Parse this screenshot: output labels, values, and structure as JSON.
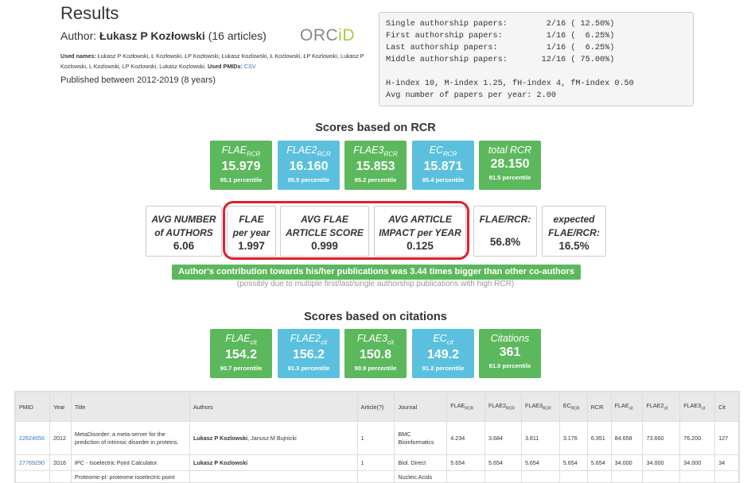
{
  "header": {
    "title": "Results",
    "author_prefix": "Author:",
    "author_name": "Łukasz P Kozłowski",
    "article_count": "(16 articles)",
    "orcid_text": "ORC",
    "orcid_id": "iD",
    "used_names_label": "Used names:",
    "used_names": "Łukasz P Kozłowski, Ł Kozłowski, ŁP Kozłowski, Łukasz Kozlowski, Ł Kozlowski, ŁP Kozlowski, Lukasz P Kozlowski, L Kozlowski, LP Kozlowski, Lukasz Kozlowski.",
    "used_pmids_label": "Used PMIDs:",
    "used_pmids_link": "CSV",
    "published": "Published between 2012-2019 (8 years)"
  },
  "stats_box": {
    "text": "Single authorship papers:        2/16 ( 12.50%)\nFirst authorship papers:         1/16 (  6.25%)\nLast authorship papers:          1/16 (  6.25%)\nMiddle authorship papers:       12/16 ( 75.00%)\n\nH-index 10, M-index 1.25, fH-index 4, fM-index 0.50\nAvg number of papers per year: 2.00"
  },
  "rcr": {
    "section_title": "Scores based on RCR",
    "tiles": [
      {
        "name": "FLAE",
        "sub": "RCR",
        "value": "15.979",
        "percentile": "95.1 percentile",
        "color": "green"
      },
      {
        "name": "FLAE2",
        "sub": "RCR",
        "value": "16.160",
        "percentile": "95.5 percentile",
        "color": "blue"
      },
      {
        "name": "FLAE3",
        "sub": "RCR",
        "value": "15.853",
        "percentile": "95.2 percentile",
        "color": "green"
      },
      {
        "name": "EC",
        "sub": "RCR",
        "value": "15.871",
        "percentile": "95.4 percentile",
        "color": "blue"
      },
      {
        "name": "total RCR",
        "sub": "",
        "value": "28.150",
        "percentile": "81.5 percentile",
        "color": "green"
      }
    ],
    "boxes": [
      {
        "line1": "AVG NUMBER",
        "line2": "of AUTHORS",
        "value": "6.06"
      },
      {
        "line1": "FLAE",
        "line2": "per year",
        "value": "1.997"
      },
      {
        "line1": "AVG FLAE",
        "line2": "ARTICLE SCORE",
        "value": "0.999"
      },
      {
        "line1": "AVG ARTICLE",
        "line2": "IMPACT per YEAR",
        "value": "0.125"
      },
      {
        "line1": "FLAE/RCR:",
        "line2": "",
        "value": "56.8%"
      },
      {
        "line1": "expected",
        "line2": "FLAE/RCR:",
        "value": "16.5%"
      }
    ],
    "contribution": "Author's contribution towards his/her publications was 3.44 times bigger than other co-authors",
    "contribution_note": "(possibly due to multiple first/last/single authorship publications with high RCR)"
  },
  "citations": {
    "section_title": "Scores based on citations",
    "tiles": [
      {
        "name": "FLAE",
        "sub": "cit",
        "value": "154.2",
        "percentile": "90.7 percentile",
        "color": "green"
      },
      {
        "name": "FLAE2",
        "sub": "cit",
        "value": "156.2",
        "percentile": "91.3 percentile",
        "color": "blue"
      },
      {
        "name": "FLAE3",
        "sub": "cit",
        "value": "150.8",
        "percentile": "90.9 percentile",
        "color": "green"
      },
      {
        "name": "EC",
        "sub": "cit",
        "value": "149.2",
        "percentile": "91.2 percentile",
        "color": "blue"
      },
      {
        "name": "Citations",
        "sub": "",
        "value": "361",
        "percentile": "81.0 percentile",
        "color": "green"
      }
    ]
  },
  "table": {
    "columns": [
      {
        "label": "PMID",
        "sub": ""
      },
      {
        "label": "Year",
        "sub": ""
      },
      {
        "label": "Title",
        "sub": ""
      },
      {
        "label": "Authors",
        "sub": ""
      },
      {
        "label": "Article(?)",
        "sub": ""
      },
      {
        "label": "Journal",
        "sub": ""
      },
      {
        "label": "FLAE",
        "sub": "RCR"
      },
      {
        "label": "FLAE2",
        "sub": "RCR"
      },
      {
        "label": "FLAE3",
        "sub": "RCR"
      },
      {
        "label": "EC",
        "sub": "RCR"
      },
      {
        "label": "RCR",
        "sub": ""
      },
      {
        "label": "FLAE",
        "sub": "cit"
      },
      {
        "label": "FLAE2",
        "sub": "cit"
      },
      {
        "label": "FLAE3",
        "sub": "cit"
      },
      {
        "label": "Cit",
        "sub": ""
      }
    ],
    "rows": [
      {
        "pmid": "22624656",
        "year": "2012",
        "title": "MetaDisorder: a meta-server for the prediction of intrinsic disorder in proteins.",
        "authors_bold": "Lukasz P Kozlowski",
        "authors_rest": ", Janusz M Bujnicki",
        "article": "1",
        "journal": "BMC Bioinformatics",
        "flae_rcr": "4.234",
        "flae2_rcr": "3.684",
        "flae3_rcr": "3.811",
        "ec_rcr": "3.176",
        "rcr": "6.351",
        "flae_cit": "84.658",
        "flae2_cit": "73.660",
        "flae3_cit": "76.200",
        "cit": "127"
      },
      {
        "pmid": "27769290",
        "year": "2016",
        "title": "IPC - Isoelectric Point Calculator.",
        "authors_bold": "Lukasz P Kozlowski",
        "authors_rest": "",
        "article": "1",
        "journal": "Biol. Direct",
        "flae_rcr": "5.654",
        "flae2_rcr": "5.654",
        "flae3_rcr": "5.654",
        "ec_rcr": "5.654",
        "rcr": "5.654",
        "flae_cit": "34.000",
        "flae2_cit": "34.000",
        "flae3_cit": "34.000",
        "cit": "34"
      },
      {
        "pmid": "",
        "year": "",
        "title": "Proteome-pI: proteome isoelectric point",
        "authors_bold": "",
        "authors_rest": "",
        "article": "",
        "journal": "Nucleic Acids",
        "flae_rcr": "",
        "flae2_rcr": "",
        "flae3_rcr": "",
        "ec_rcr": "",
        "rcr": "",
        "flae_cit": "",
        "flae2_cit": "",
        "flae3_cit": "",
        "cit": ""
      }
    ]
  }
}
